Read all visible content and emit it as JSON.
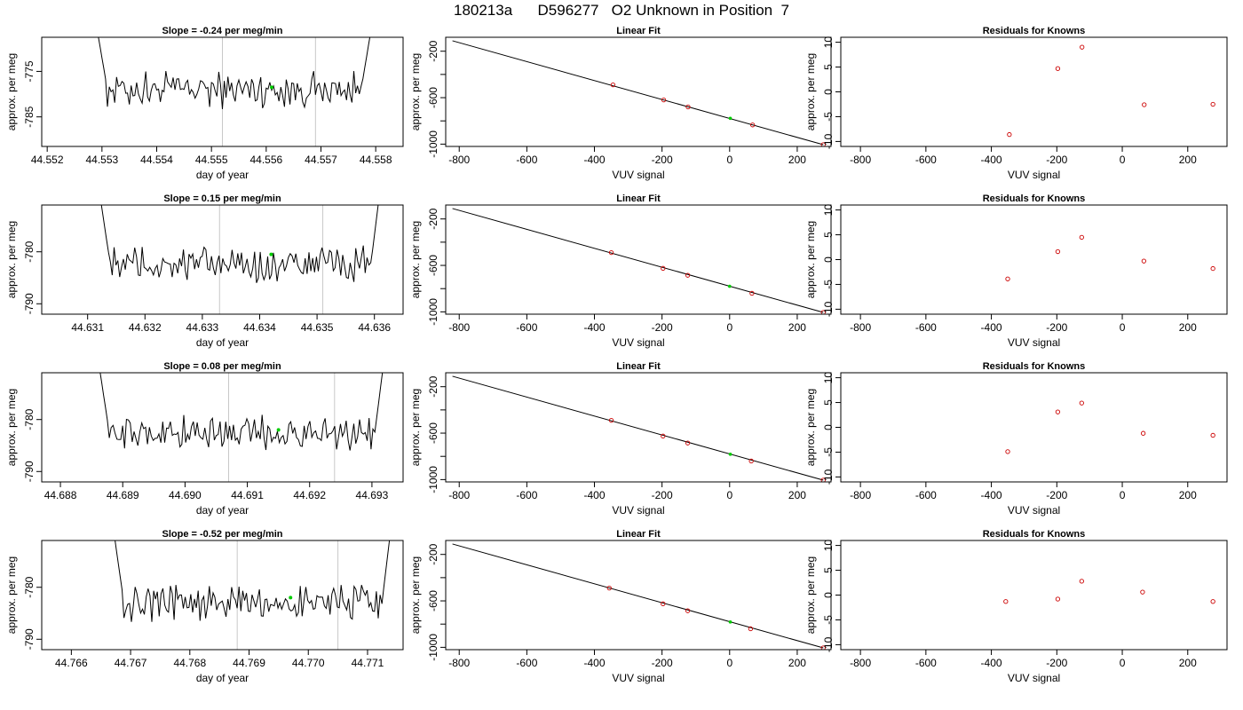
{
  "title": "180213a      D596277   O2 Unknown in Position  7",
  "colors": {
    "trace": "#000000",
    "vline": "#c8c8c8",
    "unknown": "#00cc00",
    "known": "#cc0000",
    "fit": "#000000"
  },
  "chart_data": [
    {
      "type": "line",
      "row": 0,
      "panel": "timeseries",
      "title": "Slope =  -0.24  per meg/min",
      "xlabel": "day of year",
      "ylabel": "approx. per meg",
      "xlim": [
        44.5519,
        44.5585
      ],
      "ylim": [
        -791.5,
        -767.5
      ],
      "xticks": [
        "44.552",
        "44.553",
        "44.554",
        "44.555",
        "44.556",
        "44.557",
        "44.558"
      ],
      "yticks": [
        "-785",
        "-775"
      ],
      "trace_start": 44.5529,
      "trace_end": 44.5579,
      "trace_edge_start": -765,
      "trace_edge_end": -767,
      "trace_mean": -779,
      "trace_amp": 3.2,
      "vlines": [
        44.5552,
        44.5569
      ],
      "unknown_point": {
        "x": 44.5561,
        "y": -778.5
      }
    },
    {
      "type": "scatter",
      "row": 0,
      "panel": "fit",
      "title": "Linear Fit",
      "xlabel": "VUV signal",
      "ylabel": "approx. per meg",
      "xlim": [
        -840,
        300
      ],
      "ylim": [
        -1020,
        -80
      ],
      "xticks": [
        "-800",
        "-600",
        "-400",
        "-200",
        "0",
        "200"
      ],
      "yticks": [
        "-1000",
        "-600",
        "-200"
      ],
      "fit_line": {
        "x": [
          -820,
          277
        ],
        "y": [
          -110,
          -1005
        ]
      },
      "knowns": [
        {
          "x": -345,
          "y": -490
        },
        {
          "x": -195,
          "y": -620
        },
        {
          "x": -123,
          "y": -680
        },
        {
          "x": 68,
          "y": -835
        },
        {
          "x": 277,
          "y": -1005
        }
      ],
      "unknown": {
        "x": 2,
        "y": -778
      }
    },
    {
      "type": "scatter",
      "row": 0,
      "panel": "residuals",
      "title": "Residuals for Knowns",
      "xlabel": "VUV signal",
      "ylabel": "approx. per meg",
      "xlim": [
        -860,
        320
      ],
      "ylim": [
        -11,
        11
      ],
      "xticks": [
        "-800",
        "-600",
        "-400",
        "-200",
        "0",
        "200"
      ],
      "yticks": [
        "-10",
        "-5",
        "0",
        "5",
        "10"
      ],
      "points": [
        {
          "x": -345,
          "y": -8.6
        },
        {
          "x": -197,
          "y": 4.7
        },
        {
          "x": -123,
          "y": 9.0
        },
        {
          "x": 67,
          "y": -2.6
        },
        {
          "x": 277,
          "y": -2.5
        }
      ]
    },
    {
      "type": "line",
      "row": 1,
      "panel": "timeseries",
      "title": "Slope =  0.15  per meg/min",
      "xlabel": "day of year",
      "ylabel": "approx. per meg",
      "xlim": [
        44.6302,
        44.6365
      ],
      "ylim": [
        -792,
        -771
      ],
      "xticks": [
        "44.631",
        "44.632",
        "44.633",
        "44.634",
        "44.635",
        "44.636"
      ],
      "yticks": [
        "-790",
        "-780"
      ],
      "trace_start": 44.6312,
      "trace_end": 44.6361,
      "trace_edge_start": -768,
      "trace_edge_end": -768,
      "trace_mean": -782.5,
      "trace_amp": 2.8,
      "vlines": [
        44.6333,
        44.6351
      ],
      "unknown_point": {
        "x": 44.6342,
        "y": -780.5
      }
    },
    {
      "type": "scatter",
      "row": 1,
      "panel": "fit",
      "title": "Linear Fit",
      "xlabel": "VUV signal",
      "ylabel": "approx. per meg",
      "xlim": [
        -840,
        300
      ],
      "ylim": [
        -1020,
        -80
      ],
      "xticks": [
        "-800",
        "-600",
        "-400",
        "-200",
        "0",
        "200"
      ],
      "yticks": [
        "-1000",
        "-600",
        "-200"
      ],
      "fit_line": {
        "x": [
          -820,
          277
        ],
        "y": [
          -110,
          -1005
        ]
      },
      "knowns": [
        {
          "x": -350,
          "y": -490
        },
        {
          "x": -197,
          "y": -625
        },
        {
          "x": -124,
          "y": -685
        },
        {
          "x": 66,
          "y": -840
        },
        {
          "x": 277,
          "y": -1005
        }
      ],
      "unknown": {
        "x": 0,
        "y": -780
      }
    },
    {
      "type": "scatter",
      "row": 1,
      "panel": "residuals",
      "title": "Residuals for Knowns",
      "xlabel": "VUV signal",
      "ylabel": "approx. per meg",
      "xlim": [
        -860,
        320
      ],
      "ylim": [
        -11,
        11
      ],
      "xticks": [
        "-800",
        "-600",
        "-400",
        "-200",
        "0",
        "200"
      ],
      "yticks": [
        "-10",
        "-5",
        "0",
        "5",
        "10"
      ],
      "points": [
        {
          "x": -350,
          "y": -3.9
        },
        {
          "x": -197,
          "y": 1.6
        },
        {
          "x": -124,
          "y": 4.5
        },
        {
          "x": 66,
          "y": -0.3
        },
        {
          "x": 277,
          "y": -1.8
        }
      ]
    },
    {
      "type": "line",
      "row": 2,
      "panel": "timeseries",
      "title": "Slope =  0.08  per meg/min",
      "xlabel": "day of year",
      "ylabel": "approx. per meg",
      "xlim": [
        44.6877,
        44.6935
      ],
      "ylim": [
        -792,
        -771
      ],
      "xticks": [
        "44.688",
        "44.689",
        "44.690",
        "44.691",
        "44.692",
        "44.693"
      ],
      "yticks": [
        "-790",
        "-780"
      ],
      "trace_start": 44.6886,
      "trace_end": 44.6932,
      "trace_edge_start": -768,
      "trace_edge_end": -768,
      "trace_mean": -782.5,
      "trace_amp": 2.5,
      "vlines": [
        44.6907,
        44.6924
      ],
      "unknown_point": {
        "x": 44.6915,
        "y": -782
      }
    },
    {
      "type": "scatter",
      "row": 2,
      "panel": "fit",
      "title": "Linear Fit",
      "xlabel": "VUV signal",
      "ylabel": "approx. per meg",
      "xlim": [
        -840,
        300
      ],
      "ylim": [
        -1020,
        -80
      ],
      "xticks": [
        "-800",
        "-600",
        "-400",
        "-200",
        "0",
        "200"
      ],
      "yticks": [
        "-1000",
        "-600",
        "-200"
      ],
      "fit_line": {
        "x": [
          -820,
          277
        ],
        "y": [
          -110,
          -1005
        ]
      },
      "knowns": [
        {
          "x": -350,
          "y": -490
        },
        {
          "x": -197,
          "y": -625
        },
        {
          "x": -124,
          "y": -685
        },
        {
          "x": 64,
          "y": -840
        },
        {
          "x": 277,
          "y": -1005
        }
      ],
      "unknown": {
        "x": 2,
        "y": -782
      }
    },
    {
      "type": "scatter",
      "row": 2,
      "panel": "residuals",
      "title": "Residuals for Knowns",
      "xlabel": "VUV signal",
      "ylabel": "approx. per meg",
      "xlim": [
        -860,
        320
      ],
      "ylim": [
        -11,
        11
      ],
      "xticks": [
        "-800",
        "-600",
        "-400",
        "-200",
        "0",
        "200"
      ],
      "yticks": [
        "-10",
        "-5",
        "0",
        "5",
        "10"
      ],
      "points": [
        {
          "x": -350,
          "y": -4.9
        },
        {
          "x": -197,
          "y": 3.1
        },
        {
          "x": -124,
          "y": 4.9
        },
        {
          "x": 64,
          "y": -1.2
        },
        {
          "x": 277,
          "y": -1.6
        }
      ]
    },
    {
      "type": "line",
      "row": 3,
      "panel": "timeseries",
      "title": "Slope =  -0.52  per meg/min",
      "xlabel": "day of year",
      "ylabel": "approx. per meg",
      "xlim": [
        44.7655,
        44.7716
      ],
      "ylim": [
        -792,
        -771
      ],
      "xticks": [
        "44.766",
        "44.767",
        "44.768",
        "44.769",
        "44.770",
        "44.771"
      ],
      "yticks": [
        "-790",
        "-780"
      ],
      "trace_start": 44.7667,
      "trace_end": 44.7714,
      "trace_edge_start": -768,
      "trace_edge_end": -768,
      "trace_mean": -783,
      "trace_amp": 2.8,
      "vlines": [
        44.7688,
        44.7705
      ],
      "unknown_point": {
        "x": 44.7697,
        "y": -782
      }
    },
    {
      "type": "scatter",
      "row": 3,
      "panel": "fit",
      "title": "Linear Fit",
      "xlabel": "VUV signal",
      "ylabel": "approx. per meg",
      "xlim": [
        -840,
        300
      ],
      "ylim": [
        -1020,
        -80
      ],
      "xticks": [
        "-800",
        "-600",
        "-400",
        "-200",
        "0",
        "200"
      ],
      "yticks": [
        "-1000",
        "-600",
        "-200"
      ],
      "fit_line": {
        "x": [
          -820,
          277
        ],
        "y": [
          -110,
          -1005
        ]
      },
      "knowns": [
        {
          "x": -356,
          "y": -490
        },
        {
          "x": -197,
          "y": -625
        },
        {
          "x": -124,
          "y": -685
        },
        {
          "x": 62,
          "y": -840
        },
        {
          "x": 277,
          "y": -1005
        }
      ],
      "unknown": {
        "x": 2,
        "y": -782
      }
    },
    {
      "type": "scatter",
      "row": 3,
      "panel": "residuals",
      "title": "Residuals for Knowns",
      "xlabel": "VUV signal",
      "ylabel": "approx. per meg",
      "xlim": [
        -860,
        320
      ],
      "ylim": [
        -11,
        11
      ],
      "xticks": [
        "-800",
        "-600",
        "-400",
        "-200",
        "0",
        "200"
      ],
      "yticks": [
        "-10",
        "-5",
        "0",
        "5",
        "10"
      ],
      "points": [
        {
          "x": -356,
          "y": -1.3
        },
        {
          "x": -197,
          "y": -0.8
        },
        {
          "x": -124,
          "y": 2.8
        },
        {
          "x": 62,
          "y": 0.6
        },
        {
          "x": 277,
          "y": -1.3
        }
      ]
    }
  ]
}
